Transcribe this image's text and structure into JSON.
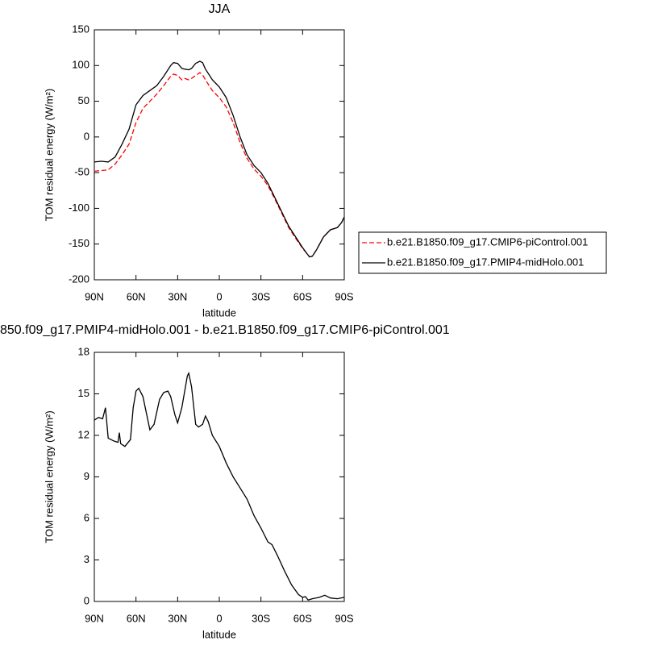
{
  "chart_data": [
    {
      "type": "line",
      "title": "JJA",
      "xlabel": "latitude",
      "ylabel": "TOM residual energy (W/m²)",
      "x": [
        90,
        85,
        80,
        75,
        70,
        65,
        60,
        55,
        50,
        45,
        40,
        35,
        33,
        30,
        27,
        25,
        22,
        20,
        17,
        14,
        12,
        10,
        5,
        0,
        -5,
        -10,
        -15,
        -20,
        -25,
        -30,
        -35,
        -40,
        -45,
        -50,
        -55,
        -60,
        -63,
        -65,
        -67,
        -70,
        -75,
        -80,
        -85,
        -88,
        -90
      ],
      "xlim": [
        90,
        -90
      ],
      "xticks": [
        {
          "value": 90,
          "label": "90N"
        },
        {
          "value": 60,
          "label": "60N"
        },
        {
          "value": 30,
          "label": "30N"
        },
        0,
        {
          "value": -30,
          "label": "30S"
        },
        {
          "value": -60,
          "label": "60S"
        },
        {
          "value": -90,
          "label": "90S"
        }
      ],
      "ylim": [
        -200,
        150
      ],
      "yticks": [
        -200,
        -150,
        -100,
        -50,
        0,
        50,
        100,
        150
      ],
      "legend_position": "right",
      "series": [
        {
          "name": "b.e21.B1850.f09_g17.CMIP6-piControl.001",
          "color": "#ff0000",
          "line_style": "dashed",
          "values": [
            -48,
            -47,
            -46,
            -38,
            -25,
            -10,
            20,
            40,
            50,
            60,
            72,
            85,
            88,
            86,
            80,
            82,
            80,
            82,
            86,
            90,
            87,
            80,
            65,
            55,
            42,
            20,
            -8,
            -30,
            -45,
            -55,
            -68,
            -87,
            -107,
            -127,
            -142,
            -156,
            -163,
            -168,
            -167,
            -158,
            -140,
            -130,
            -127,
            -120,
            -112
          ]
        },
        {
          "name": "b.e21.B1850.f09_g17.PMIP4-midHolo.001",
          "color": "#000000",
          "line_style": "solid",
          "values": [
            -35,
            -34,
            -35,
            -28,
            -10,
            11,
            45,
            58,
            65,
            72,
            85,
            100,
            104,
            103,
            96,
            95,
            94,
            96,
            103,
            106,
            104,
            95,
            80,
            70,
            55,
            30,
            0,
            -25,
            -40,
            -50,
            -65,
            -85,
            -105,
            -125,
            -140,
            -155,
            -163,
            -168,
            -167,
            -158,
            -140,
            -130,
            -127,
            -120,
            -112
          ]
        }
      ]
    },
    {
      "type": "line",
      "title": "850.f09_g17.PMIP4-midHolo.001 - b.e21.B1850.f09_g17.CMIP6-piControl.001",
      "xlabel": "latitude",
      "ylabel": "TOM residual energy (W/m²)",
      "x": [
        90,
        87,
        84,
        82,
        80,
        76,
        73,
        72,
        71,
        68,
        64,
        62,
        60,
        58,
        55,
        50,
        47,
        43,
        40,
        37,
        35,
        32,
        30,
        27,
        23,
        22,
        20,
        17,
        15,
        12,
        10,
        8,
        5,
        0,
        -5,
        -10,
        -15,
        -20,
        -25,
        -30,
        -35,
        -38,
        -42,
        -47,
        -52,
        -57,
        -60,
        -62,
        -64,
        -67,
        -72,
        -76,
        -80,
        -85,
        -90
      ],
      "xlim": [
        90,
        -90
      ],
      "xticks": [
        {
          "value": 90,
          "label": "90N"
        },
        {
          "value": 60,
          "label": "60N"
        },
        {
          "value": 30,
          "label": "30N"
        },
        0,
        {
          "value": -30,
          "label": "30S"
        },
        {
          "value": -60,
          "label": "60S"
        },
        {
          "value": -90,
          "label": "90S"
        }
      ],
      "ylim": [
        0,
        18
      ],
      "yticks": [
        0,
        3,
        6,
        9,
        12,
        15,
        18
      ],
      "series": [
        {
          "color": "#000000",
          "line_style": "solid",
          "values": [
            13.1,
            13.3,
            13.2,
            14.0,
            11.8,
            11.6,
            11.5,
            12.2,
            11.4,
            11.2,
            11.7,
            14,
            15.2,
            15.4,
            14.8,
            12.4,
            12.8,
            14.6,
            15.1,
            15.2,
            14.8,
            13.5,
            12.9,
            14,
            16.3,
            16.5,
            15.5,
            12.8,
            12.6,
            12.8,
            13.4,
            13.0,
            12.0,
            11.2,
            10,
            9,
            8.2,
            7.4,
            6.2,
            5.3,
            4.3,
            4.1,
            3.3,
            2.2,
            1.2,
            0.5,
            0.3,
            0.35,
            0.1,
            0.2,
            0.3,
            0.45,
            0.25,
            0.2,
            0.3
          ]
        }
      ]
    }
  ]
}
